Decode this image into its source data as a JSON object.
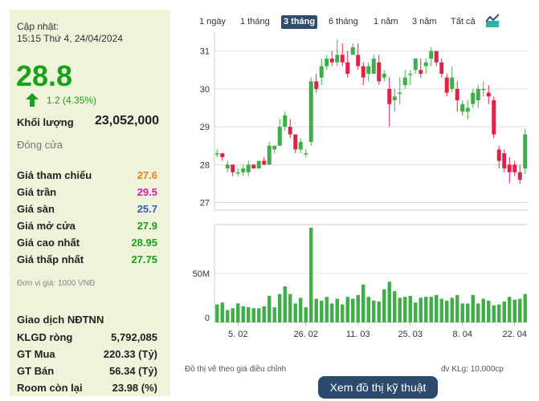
{
  "update": {
    "label": "Cập nhật:",
    "time": "15:15 Thứ 4, 24/04/2024"
  },
  "price": "28.8",
  "change": "1.2 (4.35%)",
  "volume": {
    "label": "Khối lượng",
    "value": "23,052,000"
  },
  "status": "Đóng cửa",
  "stats": [
    {
      "label": "Giá tham chiếu",
      "value": "27.6",
      "color": "#e8821a"
    },
    {
      "label": "Giá trần",
      "value": "29.5",
      "color": "#d81bb8"
    },
    {
      "label": "Giá sàn",
      "value": "25.7",
      "color": "#2a63c8"
    },
    {
      "label": "Giá mở cửa",
      "value": "27.9",
      "color": "#1aa11a"
    },
    {
      "label": "Giá cao nhất",
      "value": "28.95",
      "color": "#1aa11a"
    },
    {
      "label": "Giá thấp nhất",
      "value": "27.75",
      "color": "#1aa11a"
    }
  ],
  "unit_note": "Đơn vị giá: 1000 VNĐ",
  "foreign": {
    "title": "Giao dịch NĐTNN",
    "rows": [
      {
        "label": "KLGD ròng",
        "value": "5,792,085"
      },
      {
        "label": "GT Mua",
        "value": "220.33 (Tỷ)"
      },
      {
        "label": "GT Bán",
        "value": "56.34 (Tỷ)"
      },
      {
        "label": "Room còn lại",
        "value": "23.98 (%)"
      }
    ]
  },
  "tabs": [
    "1 ngày",
    "1 tháng",
    "3 tháng",
    "6 tháng",
    "1 năm",
    "3 năm",
    "Tất cả"
  ],
  "active_tab": "3 tháng",
  "footer": {
    "left": "Đồ thị vẽ theo giá điều chỉnh",
    "right": "đv KLg: 10,000cp"
  },
  "button": "Xem đồ thị kỹ thuật",
  "colors": {
    "up": "#3fae49",
    "down": "#e0214a",
    "volume": "#3fae49"
  },
  "chart_data": {
    "type": "candlestick",
    "y_ticks": [
      "31",
      "30",
      "29",
      "28",
      "27"
    ],
    "ylim": [
      26.8,
      31.5
    ],
    "x_ticks": [
      {
        "label": "5. 02",
        "index": 4
      },
      {
        "label": "26. 02",
        "index": 17
      },
      {
        "label": "11. 03",
        "index": 27
      },
      {
        "label": "25. 03",
        "index": 37
      },
      {
        "label": "8. 04",
        "index": 47
      },
      {
        "label": "22. 04",
        "index": 57
      }
    ],
    "volume_ticks": [
      "50M",
      "0"
    ],
    "volume_max": 100,
    "candles": [
      {
        "o": 28.3,
        "h": 28.4,
        "l": 28.2,
        "c": 28.3
      },
      {
        "o": 28.3,
        "h": 28.3,
        "l": 28.1,
        "c": 28.2
      },
      {
        "o": 27.9,
        "h": 28.1,
        "l": 27.8,
        "c": 28.0
      },
      {
        "o": 28.0,
        "h": 28.0,
        "l": 27.7,
        "c": 27.8
      },
      {
        "o": 27.8,
        "h": 27.9,
        "l": 27.7,
        "c": 27.8
      },
      {
        "o": 27.8,
        "h": 28.0,
        "l": 27.7,
        "c": 27.9
      },
      {
        "o": 27.8,
        "h": 28.1,
        "l": 27.7,
        "c": 28.0
      },
      {
        "o": 28.0,
        "h": 28.0,
        "l": 27.9,
        "c": 27.9
      },
      {
        "o": 27.9,
        "h": 28.1,
        "l": 27.9,
        "c": 28.1
      },
      {
        "o": 28.1,
        "h": 28.2,
        "l": 28.0,
        "c": 28.0
      },
      {
        "o": 28.0,
        "h": 28.6,
        "l": 28.0,
        "c": 28.5
      },
      {
        "o": 28.4,
        "h": 28.5,
        "l": 28.3,
        "c": 28.5
      },
      {
        "o": 28.5,
        "h": 29.2,
        "l": 28.5,
        "c": 29.0
      },
      {
        "o": 29.0,
        "h": 29.4,
        "l": 28.9,
        "c": 29.3
      },
      {
        "o": 29.0,
        "h": 29.2,
        "l": 28.7,
        "c": 28.8
      },
      {
        "o": 28.8,
        "h": 28.8,
        "l": 28.3,
        "c": 28.4
      },
      {
        "o": 28.4,
        "h": 28.7,
        "l": 28.3,
        "c": 28.6
      },
      {
        "o": 28.3,
        "h": 28.4,
        "l": 28.2,
        "c": 28.3
      },
      {
        "o": 28.6,
        "h": 30.3,
        "l": 28.5,
        "c": 30.2
      },
      {
        "o": 30.2,
        "h": 30.4,
        "l": 29.9,
        "c": 30.0
      },
      {
        "o": 30.3,
        "h": 30.8,
        "l": 30.1,
        "c": 30.6
      },
      {
        "o": 30.6,
        "h": 30.9,
        "l": 30.5,
        "c": 30.8
      },
      {
        "o": 30.8,
        "h": 31.0,
        "l": 30.6,
        "c": 30.7
      },
      {
        "o": 30.7,
        "h": 31.3,
        "l": 30.6,
        "c": 30.9
      },
      {
        "o": 30.9,
        "h": 31.2,
        "l": 30.6,
        "c": 30.7
      },
      {
        "o": 30.7,
        "h": 31.0,
        "l": 30.3,
        "c": 30.4
      },
      {
        "o": 30.9,
        "h": 31.2,
        "l": 30.9,
        "c": 31.1
      },
      {
        "o": 30.9,
        "h": 31.2,
        "l": 30.5,
        "c": 30.6
      },
      {
        "o": 30.6,
        "h": 30.7,
        "l": 30.1,
        "c": 30.3
      },
      {
        "o": 30.4,
        "h": 30.7,
        "l": 30.2,
        "c": 30.6
      },
      {
        "o": 30.4,
        "h": 30.9,
        "l": 30.4,
        "c": 30.8
      },
      {
        "o": 30.7,
        "h": 30.9,
        "l": 30.1,
        "c": 30.2
      },
      {
        "o": 30.3,
        "h": 30.5,
        "l": 30.2,
        "c": 30.4
      },
      {
        "o": 30.0,
        "h": 30.3,
        "l": 29.0,
        "c": 29.6
      },
      {
        "o": 29.7,
        "h": 30.0,
        "l": 29.4,
        "c": 29.8
      },
      {
        "o": 29.9,
        "h": 30.3,
        "l": 29.6,
        "c": 29.9
      },
      {
        "o": 30.1,
        "h": 30.5,
        "l": 30.0,
        "c": 30.3
      },
      {
        "o": 30.4,
        "h": 30.5,
        "l": 30.1,
        "c": 30.4
      },
      {
        "o": 30.5,
        "h": 30.8,
        "l": 30.4,
        "c": 30.8
      },
      {
        "o": 30.5,
        "h": 30.8,
        "l": 30.3,
        "c": 30.4
      },
      {
        "o": 30.6,
        "h": 30.8,
        "l": 30.4,
        "c": 30.7
      },
      {
        "o": 30.8,
        "h": 31.1,
        "l": 30.6,
        "c": 31.0
      },
      {
        "o": 31.0,
        "h": 31.0,
        "l": 30.6,
        "c": 30.7
      },
      {
        "o": 30.7,
        "h": 30.8,
        "l": 30.3,
        "c": 30.4
      },
      {
        "o": 30.3,
        "h": 30.4,
        "l": 29.8,
        "c": 29.9
      },
      {
        "o": 30.0,
        "h": 30.6,
        "l": 29.9,
        "c": 30.3
      },
      {
        "o": 30.0,
        "h": 30.2,
        "l": 29.4,
        "c": 29.7
      },
      {
        "o": 29.4,
        "h": 29.7,
        "l": 29.3,
        "c": 29.6
      },
      {
        "o": 29.4,
        "h": 29.7,
        "l": 29.2,
        "c": 29.5
      },
      {
        "o": 29.6,
        "h": 30.0,
        "l": 29.5,
        "c": 29.9
      },
      {
        "o": 29.7,
        "h": 30.1,
        "l": 29.5,
        "c": 30.0
      },
      {
        "o": 30.0,
        "h": 30.2,
        "l": 29.8,
        "c": 30.0
      },
      {
        "o": 29.9,
        "h": 30.1,
        "l": 29.6,
        "c": 29.8
      },
      {
        "o": 29.7,
        "h": 29.8,
        "l": 28.7,
        "c": 28.8
      },
      {
        "o": 28.4,
        "h": 28.5,
        "l": 27.9,
        "c": 28.1
      },
      {
        "o": 28.3,
        "h": 28.4,
        "l": 27.8,
        "c": 27.9
      },
      {
        "o": 28.0,
        "h": 28.2,
        "l": 27.5,
        "c": 27.8
      },
      {
        "o": 28.0,
        "h": 28.1,
        "l": 27.7,
        "c": 27.8
      },
      {
        "o": 27.8,
        "h": 28.0,
        "l": 27.5,
        "c": 27.6
      },
      {
        "o": 27.9,
        "h": 28.95,
        "l": 27.75,
        "c": 28.8
      }
    ],
    "volumes": [
      19,
      21,
      13,
      15,
      20,
      17,
      16,
      15,
      15,
      17,
      28,
      16,
      30,
      38,
      30,
      20,
      26,
      16,
      100,
      25,
      23,
      27,
      20,
      25,
      19,
      27,
      25,
      29,
      40,
      27,
      23,
      22,
      35,
      43,
      33,
      26,
      27,
      28,
      21,
      26,
      27,
      27,
      29,
      25,
      23,
      26,
      29,
      20,
      20,
      29,
      20,
      25,
      23,
      18,
      19,
      22,
      27,
      24,
      25,
      30
    ]
  }
}
